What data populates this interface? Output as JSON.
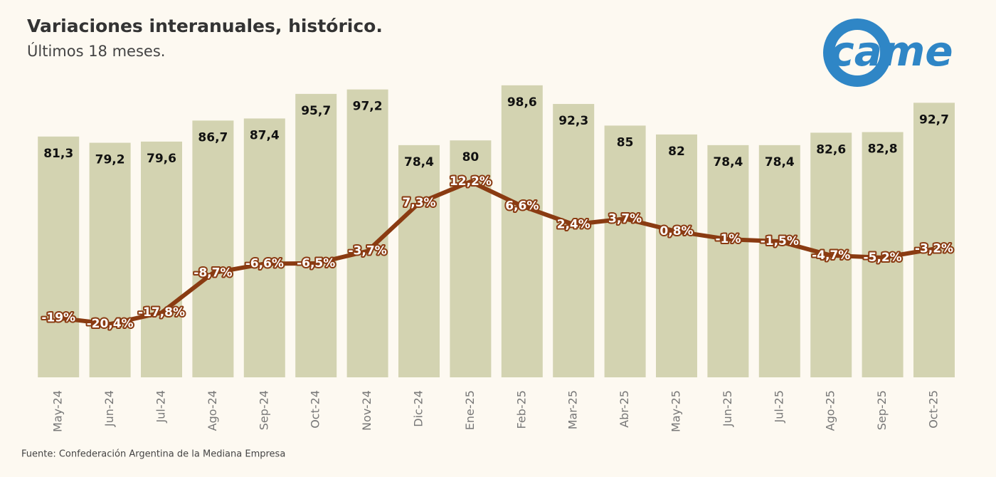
{
  "chart_data": {
    "type": "bar-line",
    "title": "Variaciones interanuales, histórico.",
    "subtitle": "Últimos 18 meses.",
    "source": "Fuente: Confederación Argentina de la Mediana Empresa",
    "logo": "came",
    "categories": [
      "May-24",
      "Jun-24",
      "Jul-24",
      "Ago-24",
      "Sep-24",
      "Oct-24",
      "Nov-24",
      "Dic-24",
      "Ene-25",
      "Feb-25",
      "Mar-25",
      "Abr-25",
      "May-25",
      "Jun-25",
      "Jul-25",
      "Ago-25",
      "Sep-25",
      "Oct-25"
    ],
    "series": [
      {
        "type": "bar",
        "color": "#d3d3b1",
        "values": [
          81.3,
          79.2,
          79.6,
          86.7,
          87.4,
          95.7,
          97.2,
          78.4,
          80,
          98.6,
          92.3,
          85,
          82,
          78.4,
          78.4,
          82.6,
          82.8,
          92.7
        ],
        "value_labels": [
          "81,3",
          "79,2",
          "79,6",
          "86,7",
          "87,4",
          "95,7",
          "97,2",
          "78,4",
          "80",
          "98,6",
          "92,3",
          "85",
          "82",
          "78,4",
          "78,4",
          "82,6",
          "82,8",
          "92,7"
        ]
      },
      {
        "type": "line",
        "axis": "y2",
        "color": "#8a3b12",
        "values": [
          -19,
          -20.4,
          -17.8,
          -8.7,
          -6.6,
          -6.5,
          -3.7,
          7.3,
          12.2,
          6.6,
          2.4,
          3.7,
          0.8,
          -1,
          -1.5,
          -4.7,
          -5.2,
          -3.2
        ],
        "value_labels": [
          "-19%",
          "-20,4%",
          "-17,8%",
          "-8,7%",
          "-6,6%",
          "-6,5%",
          "-3,7%",
          "7,3%",
          "12,2%",
          "6,6%",
          "2,4%",
          "3,7%",
          "0,8%",
          "-1%",
          "-1,5%",
          "-4,7%",
          "-5,2%",
          "-3,2%"
        ]
      }
    ],
    "ylim": [
      0,
      100
    ],
    "y2lim": [
      -32.6,
      35.2
    ]
  }
}
